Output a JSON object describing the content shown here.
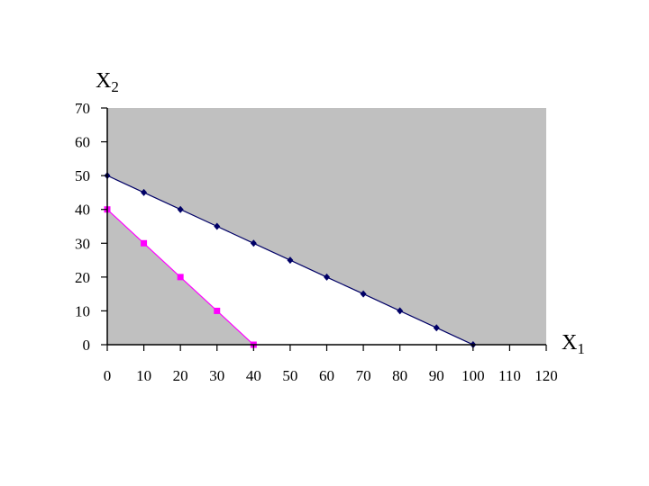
{
  "chart_data": {
    "type": "line",
    "title": "",
    "xlabel": "X",
    "xlabel_sub": "1",
    "ylabel": "X",
    "ylabel_sub": "2",
    "xlim": [
      0,
      120
    ],
    "ylim": [
      0,
      70
    ],
    "xticks": [
      0,
      10,
      20,
      30,
      40,
      50,
      60,
      70,
      80,
      90,
      100,
      110,
      120
    ],
    "yticks": [
      0,
      10,
      20,
      30,
      40,
      50,
      60,
      70
    ],
    "grid": false,
    "legend": false,
    "region_colors": {
      "excluded": "#c0c0c0",
      "feasible": "#ffffff"
    },
    "series": [
      {
        "marker": "diamond",
        "color": "#000066",
        "x": [
          0,
          10,
          20,
          30,
          40,
          50,
          60,
          70,
          80,
          90,
          100
        ],
        "y": [
          50,
          45,
          40,
          35,
          30,
          25,
          20,
          15,
          10,
          5,
          0
        ]
      },
      {
        "marker": "square",
        "color": "#ff00ff",
        "x": [
          0,
          10,
          20,
          30,
          40
        ],
        "y": [
          40,
          30,
          20,
          10,
          0
        ]
      }
    ]
  }
}
